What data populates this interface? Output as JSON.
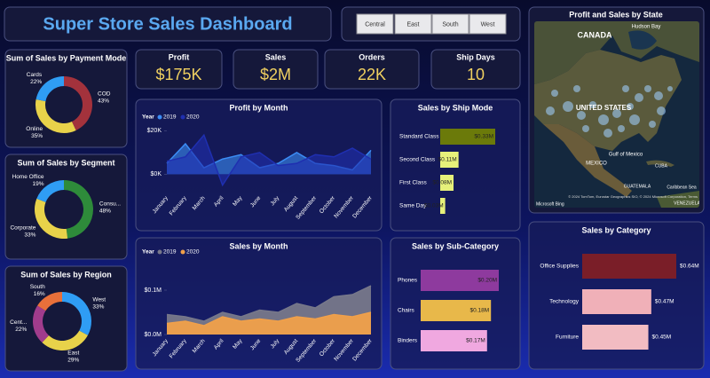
{
  "header": {
    "title": "Super Store Sales Dashboard"
  },
  "slicer": {
    "options": [
      "Central",
      "East",
      "South",
      "West"
    ]
  },
  "kpis": [
    {
      "label": "Profit",
      "value": "$175K"
    },
    {
      "label": "Sales",
      "value": "$2M"
    },
    {
      "label": "Orders",
      "value": "22K"
    },
    {
      "label": "Ship Days",
      "value": "10"
    }
  ],
  "map": {
    "title": "Profit and Sales by State",
    "labels": [
      "CANADA",
      "Hudson Bay",
      "UNITED STATES",
      "Gulf of Mexico",
      "MEXICO",
      "CUBA",
      "GUATEMALA",
      "Caribbean Sea",
      "VENEZUELA"
    ],
    "attribution": "© 2024 TomTom, Eurostar Geographics SIO, © 2024 Microsoft Corporation, Terms",
    "logo": "Microsoft Bing"
  },
  "chart_data": [
    {
      "type": "donut",
      "title": "Sum of Sales by Payment Mode",
      "categories": [
        "COD",
        "Online",
        "Cards"
      ],
      "values": [
        43,
        35,
        22
      ],
      "value_labels": [
        "43%",
        "35%",
        "22%"
      ],
      "colors": [
        "#a3323c",
        "#e8d24a",
        "#2f9df4"
      ]
    },
    {
      "type": "donut",
      "title": "Sum of Sales by Segment",
      "categories": [
        "Consu...",
        "Corporate",
        "Home Office"
      ],
      "values": [
        48,
        33,
        19
      ],
      "value_labels": [
        "48%",
        "33%",
        "19%"
      ],
      "colors": [
        "#2e8b3a",
        "#e8d24a",
        "#2f9df4"
      ]
    },
    {
      "type": "donut",
      "title": "Sum of Sales by Region",
      "categories": [
        "West",
        "East",
        "Cent...",
        "South"
      ],
      "values": [
        33,
        29,
        22,
        16
      ],
      "value_labels": [
        "33%",
        "29%",
        "22%",
        "16%"
      ],
      "colors": [
        "#2f9df4",
        "#e8d24a",
        "#a03c8c",
        "#e8703a"
      ]
    },
    {
      "type": "area",
      "title": "Profit by Month",
      "legend_title": "Year",
      "categories": [
        "January",
        "February",
        "March",
        "April",
        "May",
        "June",
        "July",
        "August",
        "September",
        "October",
        "November",
        "December"
      ],
      "series": [
        {
          "name": "2019",
          "color": "#3b8cf5",
          "values": [
            5000,
            14000,
            3000,
            7000,
            9000,
            3000,
            5000,
            10000,
            5000,
            4000,
            2000,
            11000
          ]
        },
        {
          "name": "2020",
          "color": "#1f2fb0",
          "values": [
            6000,
            8000,
            18000,
            -5000,
            8000,
            10000,
            4000,
            5000,
            9000,
            8000,
            12000,
            7000
          ]
        }
      ],
      "ylim": [
        -8000,
        23000
      ],
      "yticks": [
        {
          "value": 0,
          "label": "$0K"
        },
        {
          "value": 20000,
          "label": "$20K"
        }
      ]
    },
    {
      "type": "area",
      "title": "Sales by Month",
      "legend_title": "Year",
      "categories": [
        "January",
        "February",
        "March",
        "April",
        "May",
        "June",
        "July",
        "August",
        "September",
        "October",
        "November",
        "December"
      ],
      "series": [
        {
          "name": "2019",
          "color": "#77788a",
          "values": [
            45000,
            40000,
            30000,
            50000,
            40000,
            55000,
            50000,
            70000,
            60000,
            85000,
            90000,
            110000
          ]
        },
        {
          "name": "2020",
          "color": "#f0a04a",
          "values": [
            25000,
            30000,
            20000,
            40000,
            30000,
            35000,
            30000,
            40000,
            35000,
            45000,
            40000,
            50000
          ]
        }
      ],
      "ylim": [
        0,
        170000
      ],
      "yticks": [
        {
          "value": 0,
          "label": "$0.0M"
        },
        {
          "value": 100000,
          "label": "$0.1M"
        }
      ]
    },
    {
      "type": "hbar",
      "title": "Sales by Ship Mode",
      "categories": [
        "Standard Class",
        "Second Class",
        "First Class",
        "Same Day"
      ],
      "values": [
        330000,
        110000,
        80000,
        30000
      ],
      "value_labels": [
        "$0.33M",
        "$0.11M",
        "$0.08M",
        "$0.03M"
      ],
      "colors": [
        "#6b7a0a",
        "#e6f07a",
        "#e6f07a",
        "#e6f07a"
      ],
      "label_position": "inside"
    },
    {
      "type": "hbar",
      "title": "Sales by Sub-Category",
      "categories": [
        "Phones",
        "Chairs",
        "Binders"
      ],
      "values": [
        200000,
        180000,
        170000
      ],
      "value_labels": [
        "$0.20M",
        "$0.18M",
        "$0.17M"
      ],
      "colors": [
        "#8e3a9e",
        "#e8b84a",
        "#f0a8e0"
      ],
      "label_position": "inside"
    },
    {
      "type": "hbar",
      "title": "Sales by Category",
      "categories": [
        "Office Supplies",
        "Technology",
        "Furniture"
      ],
      "values": [
        640000,
        470000,
        450000
      ],
      "value_labels": [
        "$0.64M",
        "$0.47M",
        "$0.45M"
      ],
      "colors": [
        "#7a1e28",
        "#f0b0b8",
        "#f2bcc2"
      ],
      "label_position": "outside"
    }
  ]
}
